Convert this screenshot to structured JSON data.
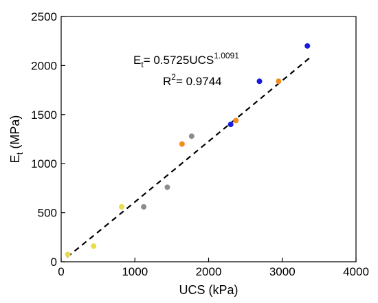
{
  "chart_data": {
    "type": "scatter",
    "xlabel": "UCS (kPa)",
    "ylabel": {
      "main": "E",
      "sub": "t",
      "tail": " (MPa)"
    },
    "xlim": [
      0,
      4000
    ],
    "ylim": [
      0,
      2500
    ],
    "x_ticks": [
      0,
      1000,
      2000,
      3000,
      4000
    ],
    "y_ticks": [
      0,
      500,
      1000,
      1500,
      2000,
      2500
    ],
    "grid": false,
    "legend": "none",
    "points": [
      {
        "x": 90,
        "y": 75,
        "color": "#e8dc4a"
      },
      {
        "x": 440,
        "y": 160,
        "color": "#e8dc4a"
      },
      {
        "x": 820,
        "y": 560,
        "color": "#e8dc4a"
      },
      {
        "x": 1120,
        "y": 560,
        "color": "#8c8c8c"
      },
      {
        "x": 1440,
        "y": 760,
        "color": "#8c8c8c"
      },
      {
        "x": 1770,
        "y": 1280,
        "color": "#8c8c8c"
      },
      {
        "x": 1640,
        "y": 1200,
        "color": "#f28c1e"
      },
      {
        "x": 2370,
        "y": 1440,
        "color": "#f28c1e"
      },
      {
        "x": 2950,
        "y": 1840,
        "color": "#f28c1e"
      },
      {
        "x": 2300,
        "y": 1400,
        "color": "#1a1adf"
      },
      {
        "x": 2690,
        "y": 1840,
        "color": "#1a1adf"
      },
      {
        "x": 3340,
        "y": 2200,
        "color": "#1a1adf"
      }
    ],
    "fit": {
      "coefficient": 0.5725,
      "exponent": 1.0091,
      "x_range": [
        80,
        3380
      ],
      "style": "dashed",
      "color": "#000000"
    },
    "annotations": {
      "equation": {
        "lhs_main": "E",
        "lhs_sub": "t",
        "body": "= 0.5725UCS",
        "sup": "1.0091"
      },
      "r2": {
        "main": "R",
        "sup": "2",
        "tail": "= 0.9744"
      }
    }
  }
}
